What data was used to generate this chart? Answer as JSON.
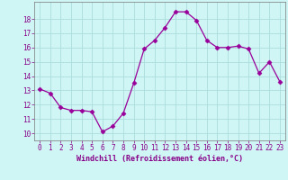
{
  "x": [
    0,
    1,
    2,
    3,
    4,
    5,
    6,
    7,
    8,
    9,
    10,
    11,
    12,
    13,
    14,
    15,
    16,
    17,
    18,
    19,
    20,
    21,
    22,
    23
  ],
  "y": [
    13.1,
    12.8,
    11.8,
    11.6,
    11.6,
    11.5,
    10.1,
    10.5,
    11.4,
    13.5,
    15.9,
    16.5,
    17.4,
    18.5,
    18.5,
    17.9,
    16.5,
    16.0,
    16.0,
    16.1,
    15.9,
    14.2,
    15.0,
    13.6
  ],
  "line_color": "#990099",
  "marker": "D",
  "marker_size": 2.5,
  "bg_color": "#cff5f5",
  "grid_color": "#aadddd",
  "xlabel": "Windchill (Refroidissement éolien,°C)",
  "xlabel_color": "#880088",
  "tick_color": "#880088",
  "ylim": [
    9.5,
    19.2
  ],
  "xlim": [
    -0.5,
    23.5
  ],
  "yticks": [
    10,
    11,
    12,
    13,
    14,
    15,
    16,
    17,
    18
  ],
  "xticks": [
    0,
    1,
    2,
    3,
    4,
    5,
    6,
    7,
    8,
    9,
    10,
    11,
    12,
    13,
    14,
    15,
    16,
    17,
    18,
    19,
    20,
    21,
    22,
    23
  ],
  "xtick_labels": [
    "0",
    "1",
    "2",
    "3",
    "4",
    "5",
    "6",
    "7",
    "8",
    "9",
    "10",
    "11",
    "12",
    "13",
    "14",
    "15",
    "16",
    "17",
    "18",
    "19",
    "20",
    "21",
    "22",
    "23"
  ],
  "spine_color": "#777777",
  "tick_fontsize": 5.5,
  "xlabel_fontsize": 6.0
}
